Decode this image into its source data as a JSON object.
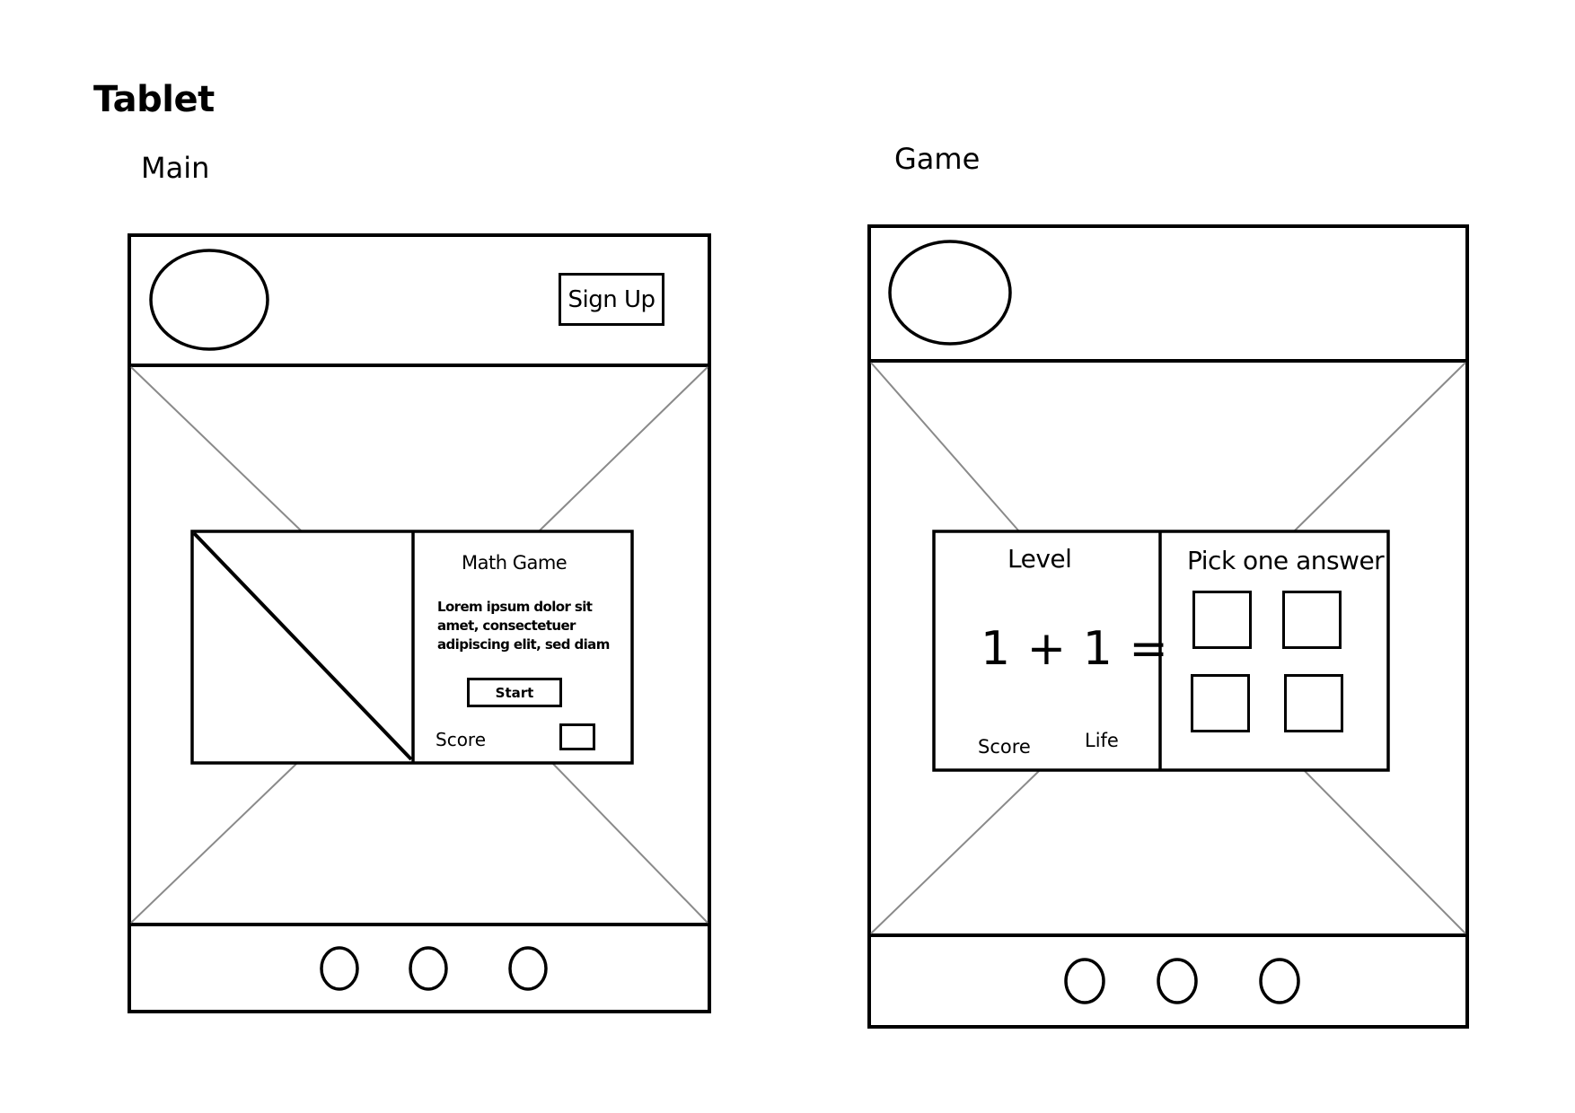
{
  "page": {
    "title": "Tablet",
    "main_label": "Main",
    "game_label": "Game"
  },
  "main_screen": {
    "header": {
      "signup_label": "Sign Up"
    },
    "card": {
      "title": "Math Game",
      "description": "Lorem ipsum dolor sit amet, consectetuer adipiscing elit, sed diam",
      "start_label": "Start",
      "score_label": "Score"
    }
  },
  "game_screen": {
    "left_panel": {
      "level_label": "Level",
      "equation": "1 + 1 =",
      "score_label": "Score",
      "life_label": "Life"
    },
    "right_panel": {
      "pick_label": "Pick one answer"
    }
  },
  "colors": {
    "stroke": "#000000",
    "placeholder_line": "#8a8a8a",
    "background": "#ffffff"
  }
}
